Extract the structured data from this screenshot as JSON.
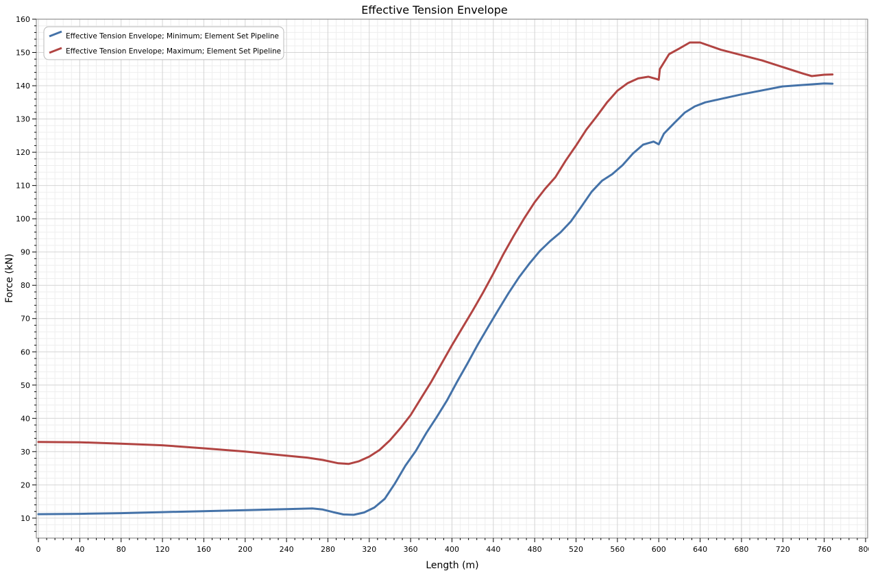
{
  "chart_data": {
    "type": "line",
    "title": "Effective Tension Envelope",
    "xlabel": "Length (m)",
    "ylabel": "Force (kN)",
    "xlim": [
      -2,
      802
    ],
    "ylim": [
      4,
      160
    ],
    "x_ticks": [
      0,
      40,
      80,
      120,
      160,
      200,
      240,
      280,
      320,
      360,
      400,
      440,
      480,
      520,
      560,
      600,
      640,
      680,
      720,
      760,
      800
    ],
    "y_ticks": [
      10,
      20,
      30,
      40,
      50,
      60,
      70,
      80,
      90,
      100,
      110,
      120,
      130,
      140,
      150,
      160
    ],
    "grid": true,
    "legend_position": "top-left",
    "series": [
      {
        "name": "Effective Tension Envelope; Minimum; Element Set Pipeline",
        "color": "#4472a8",
        "points": [
          [
            0,
            11.2
          ],
          [
            40,
            11.3
          ],
          [
            80,
            11.5
          ],
          [
            120,
            11.8
          ],
          [
            160,
            12.1
          ],
          [
            200,
            12.4
          ],
          [
            240,
            12.7
          ],
          [
            265,
            12.9
          ],
          [
            275,
            12.6
          ],
          [
            285,
            11.8
          ],
          [
            295,
            11.1
          ],
          [
            305,
            11.0
          ],
          [
            315,
            11.7
          ],
          [
            325,
            13.2
          ],
          [
            335,
            15.8
          ],
          [
            345,
            20.5
          ],
          [
            355,
            25.8
          ],
          [
            365,
            30.2
          ],
          [
            375,
            35.5
          ],
          [
            385,
            40.3
          ],
          [
            395,
            45.3
          ],
          [
            405,
            51.0
          ],
          [
            415,
            56.5
          ],
          [
            425,
            62.2
          ],
          [
            435,
            67.5
          ],
          [
            445,
            72.7
          ],
          [
            455,
            77.8
          ],
          [
            465,
            82.5
          ],
          [
            475,
            86.6
          ],
          [
            485,
            90.3
          ],
          [
            495,
            93.3
          ],
          [
            505,
            95.9
          ],
          [
            515,
            99.2
          ],
          [
            525,
            103.6
          ],
          [
            535,
            108.1
          ],
          [
            545,
            111.4
          ],
          [
            555,
            113.4
          ],
          [
            565,
            116.1
          ],
          [
            575,
            119.6
          ],
          [
            585,
            122.3
          ],
          [
            595,
            123.2
          ],
          [
            600,
            122.4
          ],
          [
            605,
            125.6
          ],
          [
            615,
            128.8
          ],
          [
            625,
            131.9
          ],
          [
            635,
            133.8
          ],
          [
            645,
            135.0
          ],
          [
            680,
            137.4
          ],
          [
            720,
            139.8
          ],
          [
            760,
            140.7
          ],
          [
            768,
            140.6
          ]
        ]
      },
      {
        "name": "Effective Tension Envelope; Maximum; Element Set Pipeline",
        "color": "#b14442",
        "points": [
          [
            0,
            32.9
          ],
          [
            40,
            32.8
          ],
          [
            80,
            32.4
          ],
          [
            120,
            31.9
          ],
          [
            160,
            31.0
          ],
          [
            200,
            30.0
          ],
          [
            240,
            28.8
          ],
          [
            260,
            28.2
          ],
          [
            275,
            27.5
          ],
          [
            290,
            26.5
          ],
          [
            300,
            26.3
          ],
          [
            310,
            27.1
          ],
          [
            320,
            28.5
          ],
          [
            330,
            30.5
          ],
          [
            340,
            33.4
          ],
          [
            350,
            37.0
          ],
          [
            360,
            41.0
          ],
          [
            370,
            46.0
          ],
          [
            380,
            51.0
          ],
          [
            390,
            56.5
          ],
          [
            400,
            62.0
          ],
          [
            410,
            67.2
          ],
          [
            420,
            72.4
          ],
          [
            430,
            77.8
          ],
          [
            440,
            83.5
          ],
          [
            450,
            89.5
          ],
          [
            460,
            95.0
          ],
          [
            470,
            100.2
          ],
          [
            480,
            105.0
          ],
          [
            490,
            109.0
          ],
          [
            500,
            112.5
          ],
          [
            510,
            117.5
          ],
          [
            520,
            122.0
          ],
          [
            530,
            126.8
          ],
          [
            540,
            130.8
          ],
          [
            550,
            135.0
          ],
          [
            560,
            138.5
          ],
          [
            570,
            140.8
          ],
          [
            580,
            142.2
          ],
          [
            590,
            142.7
          ],
          [
            598,
            142.0
          ],
          [
            600,
            141.8
          ],
          [
            601,
            145.0
          ],
          [
            610,
            149.5
          ],
          [
            620,
            151.2
          ],
          [
            630,
            153.0
          ],
          [
            640,
            153.0
          ],
          [
            660,
            150.8
          ],
          [
            700,
            147.6
          ],
          [
            740,
            143.6
          ],
          [
            748,
            142.9
          ],
          [
            760,
            143.3
          ],
          [
            768,
            143.4
          ]
        ]
      }
    ]
  }
}
